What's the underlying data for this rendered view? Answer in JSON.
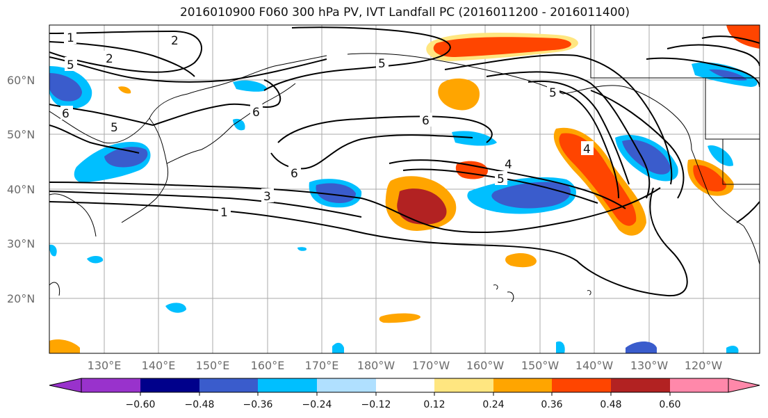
{
  "title": "2016010900 F060 300 hPa PV, IVT Landfall PC (2016011200 - 2016011400)",
  "lat_labels": [
    "60°N",
    "50°N",
    "40°N",
    "30°N",
    "20°N"
  ],
  "lon_labels": [
    "130°E",
    "140°E",
    "150°E",
    "160°E",
    "170°E",
    "180°W",
    "170°W",
    "160°W",
    "150°W",
    "140°W",
    "130°W",
    "120°W"
  ],
  "colorbar": {
    "ticks": [
      "−0.60",
      "−0.48",
      "−0.36",
      "−0.24",
      "−0.12",
      "0.12",
      "0.24",
      "0.36",
      "0.48",
      "0.60"
    ],
    "colors": [
      "#9932cc",
      "#00008b",
      "#3a5ccc",
      "#00bfff",
      "#b0e0ff",
      "#ffffff",
      "#ffe680",
      "#ffa500",
      "#ff4500",
      "#b22222",
      "#ff88aa"
    ]
  },
  "contour_labels": [
    "1",
    "2",
    "2",
    "5",
    "5",
    "5",
    "5",
    "6",
    "6",
    "6",
    "6",
    "4",
    "4",
    "5",
    "3",
    "1"
  ]
}
